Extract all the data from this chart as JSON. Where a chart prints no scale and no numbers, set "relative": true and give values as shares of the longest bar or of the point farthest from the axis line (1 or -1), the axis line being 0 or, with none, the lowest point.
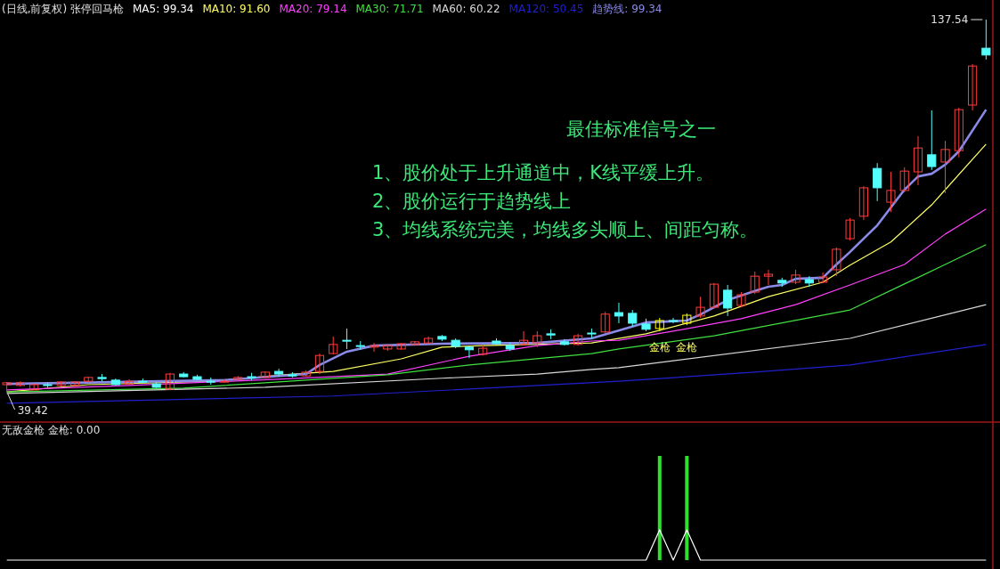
{
  "chart_data": [
    {
      "type": "candlestick",
      "title": "(日线,前复权) 张停回马枪",
      "legend": "top",
      "categories": [
        null,
        null,
        null,
        null,
        null,
        null,
        null,
        null,
        null,
        null,
        null,
        null,
        null,
        null,
        null,
        null,
        null,
        null,
        null,
        null,
        null,
        null,
        null,
        null,
        null,
        null,
        null,
        null,
        null,
        null,
        null,
        null,
        null,
        null,
        null,
        null,
        null,
        null,
        null,
        null,
        null,
        null,
        null,
        null,
        null,
        null,
        null,
        null,
        null,
        null,
        null,
        null,
        null,
        null,
        null,
        null,
        null,
        null,
        null,
        null,
        null,
        null,
        null,
        null,
        null,
        null,
        null,
        null,
        null,
        null,
        null,
        null,
        null
      ],
      "ohlc": [
        [
          41.3,
          42.0,
          39.42,
          41.8
        ],
        [
          41.1,
          42.2,
          40.8,
          41.8
        ],
        [
          39.9,
          41.5,
          39.9,
          41.3
        ],
        [
          41.3,
          41.8,
          40.6,
          41.1
        ],
        [
          41.1,
          42.2,
          40.8,
          42.0
        ],
        [
          41.1,
          42.2,
          40.8,
          42.0
        ],
        [
          42.2,
          43.4,
          41.8,
          43.2
        ],
        [
          43.2,
          44.1,
          42.2,
          42.9
        ],
        [
          42.5,
          42.9,
          41.1,
          41.3
        ],
        [
          41.5,
          42.7,
          41.3,
          42.2
        ],
        [
          42.2,
          42.9,
          41.8,
          42.0
        ],
        [
          41.5,
          42.0,
          40.4,
          40.6
        ],
        [
          40.1,
          44.4,
          39.9,
          44.1
        ],
        [
          44.1,
          44.6,
          43.2,
          43.4
        ],
        [
          43.4,
          43.9,
          42.5,
          42.7
        ],
        [
          42.2,
          43.2,
          41.3,
          42.0
        ],
        [
          42.0,
          42.7,
          41.8,
          42.2
        ],
        [
          42.7,
          43.6,
          42.5,
          43.2
        ],
        [
          43.4,
          44.4,
          42.5,
          43.2
        ],
        [
          43.2,
          44.8,
          42.9,
          44.6
        ],
        [
          44.8,
          45.5,
          43.4,
          44.1
        ],
        [
          43.9,
          44.6,
          43.2,
          43.6
        ],
        [
          43.6,
          45.1,
          43.4,
          44.6
        ],
        [
          44.8,
          49.5,
          44.1,
          49.0
        ],
        [
          49.5,
          54.0,
          49.3,
          51.9
        ],
        [
          53.0,
          56.1,
          50.7,
          52.8
        ],
        [
          51.6,
          52.8,
          50.5,
          51.4
        ],
        [
          51.2,
          52.3,
          50.0,
          51.6
        ],
        [
          50.7,
          52.1,
          50.2,
          51.6
        ],
        [
          50.7,
          52.3,
          50.5,
          52.1
        ],
        [
          51.9,
          52.8,
          51.6,
          52.6
        ],
        [
          52.3,
          54.0,
          52.1,
          53.5
        ],
        [
          54.0,
          54.4,
          52.8,
          53.3
        ],
        [
          53.0,
          53.5,
          50.9,
          51.4
        ],
        [
          51.2,
          51.4,
          48.3,
          50.5
        ],
        [
          49.3,
          51.6,
          49.0,
          50.9
        ],
        [
          52.8,
          53.5,
          51.6,
          52.1
        ],
        [
          51.6,
          52.3,
          50.2,
          50.7
        ],
        [
          51.9,
          55.4,
          51.6,
          53.0
        ],
        [
          52.3,
          55.4,
          51.2,
          54.2
        ],
        [
          54.7,
          55.9,
          53.3,
          54.4
        ],
        [
          52.6,
          53.3,
          51.6,
          51.9
        ],
        [
          51.9,
          54.7,
          51.6,
          54.2
        ],
        [
          54.9,
          56.1,
          53.5,
          54.7
        ],
        [
          55.2,
          60.5,
          54.9,
          59.9
        ],
        [
          60.3,
          62.9,
          57.5,
          59.4
        ],
        [
          60.1,
          61.0,
          56.6,
          57.5
        ],
        [
          57.3,
          58.7,
          55.4,
          55.9
        ],
        [
          56.1,
          58.9,
          55.4,
          58.2
        ],
        [
          58.2,
          58.9,
          57.5,
          58.0
        ],
        [
          57.5,
          60.1,
          57.0,
          59.6
        ],
        [
          59.4,
          64.5,
          58.9,
          61.7
        ],
        [
          61.7,
          68.1,
          61.3,
          67.8
        ],
        [
          66.2,
          67.6,
          59.4,
          61.5
        ],
        [
          62.2,
          65.7,
          61.7,
          65.0
        ],
        [
          65.7,
          71.1,
          65.2,
          69.9
        ],
        [
          69.9,
          71.6,
          67.6,
          70.4
        ],
        [
          68.8,
          69.5,
          67.1,
          68.1
        ],
        [
          68.3,
          71.6,
          67.8,
          70.2
        ],
        [
          69.0,
          69.9,
          67.1,
          68.1
        ],
        [
          68.3,
          70.9,
          68.1,
          69.7
        ],
        [
          71.6,
          77.5,
          69.9,
          77.0
        ],
        [
          79.8,
          85.2,
          79.3,
          84.7
        ],
        [
          85.7,
          93.6,
          84.7,
          93.2
        ],
        [
          98.3,
          99.7,
          89.7,
          93.2
        ],
        [
          89.4,
          97.4,
          86.8,
          92.5
        ],
        [
          92.5,
          98.6,
          92.0,
          97.6
        ],
        [
          97.4,
          106.8,
          93.9,
          103.7
        ],
        [
          101.9,
          113.6,
          97.9,
          98.8
        ],
        [
          100.0,
          105.6,
          91.8,
          103.3
        ],
        [
          103.0,
          114.3,
          101.2,
          113.8
        ],
        [
          115.0,
          125.8,
          113.6,
          125.3
        ],
        [
          130.0,
          137.54,
          127.0,
          128.2
        ]
      ],
      "colors": [
        "#ff3c3c",
        "#ff3c3c",
        "#ff3c3c",
        "#54fcfc",
        "#ff3c3c",
        "#ff3c3c",
        "#ff3c3c",
        "#54fcfc",
        "#54fcfc",
        "#ff3c3c",
        "#54fcfc",
        "#54fcfc",
        "#ff3c3c",
        "#54fcfc",
        "#54fcfc",
        "#54fcfc",
        "#ff3c3c",
        "#ff3c3c",
        "#54fcfc",
        "#ff3c3c",
        "#54fcfc",
        "#54fcfc",
        "#ff3c3c",
        "#ff3c3c",
        "#ff3c3c",
        "#54fcfc",
        "#54fcfc",
        "#ff3c3c",
        "#ff3c3c",
        "#ff3c3c",
        "#ff3c3c",
        "#ff3c3c",
        "#54fcfc",
        "#54fcfc",
        "#54fcfc",
        "#ff3c3c",
        "#54fcfc",
        "#54fcfc",
        "#ff3c3c",
        "#ff3c3c",
        "#54fcfc",
        "#54fcfc",
        "#ff3c3c",
        "#54fcfc",
        "#ff3c3c",
        "#54fcfc",
        "#54fcfc",
        "#54fcfc",
        "#ffff00",
        "#54fcfc",
        "#ffff00",
        "#ff3c3c",
        "#ff3c3c",
        "#54fcfc",
        "#ff3c3c",
        "#ff3c3c",
        "#ff3c3c",
        "#54fcfc",
        "#ff3c3c",
        "#54fcfc",
        "#ff3c3c",
        "#ff3c3c",
        "#ff3c3c",
        "#ff3c3c",
        "#54fcfc",
        "#ff3c3c",
        "#ff3c3c",
        "#ff3c3c",
        "#54fcfc",
        "#ff3c3c",
        "#ff3c3c",
        "#ff3c3c",
        "#54fcfc"
      ],
      "series": [
        {
          "name": "MA5: 99.34",
          "type": "line",
          "color": "#ffffff",
          "values": [
            null,
            null,
            null,
            null,
            null,
            null,
            null,
            null,
            null,
            null,
            null,
            null,
            null,
            null,
            null,
            null,
            null,
            null,
            null,
            null,
            null,
            null,
            null,
            null,
            null,
            null,
            null,
            null,
            null,
            null,
            null,
            null,
            null,
            null,
            null,
            null,
            null,
            null,
            null,
            null,
            null,
            null,
            null,
            null,
            null,
            null,
            null,
            null,
            null,
            null,
            null,
            null,
            null,
            null,
            null,
            null,
            null,
            null,
            null,
            null,
            null,
            null,
            null,
            null,
            null,
            null,
            null,
            null,
            null,
            null,
            null,
            null,
            null
          ]
        },
        {
          "name": "MA10: 91.60",
          "type": "line",
          "color": "#ffff66",
          "values": [
            39.4,
            null,
            null,
            null,
            null,
            null,
            41.3,
            null,
            null,
            null,
            null,
            null,
            null,
            null,
            null,
            42.2,
            null,
            null,
            null,
            null,
            null,
            44.1,
            null,
            null,
            44.8,
            null,
            null,
            null,
            null,
            48.1,
            null,
            null,
            51.2,
            null,
            null,
            51.6,
            null,
            null,
            null,
            null,
            null,
            null,
            null,
            52.3,
            null,
            null,
            null,
            54.7,
            null,
            null,
            null,
            null,
            59.4,
            null,
            null,
            null,
            64.5,
            null,
            null,
            null,
            68.3,
            null,
            72.8,
            null,
            null,
            78.9,
            null,
            null,
            88.7,
            92.7,
            null,
            null,
            104.7
          ]
        },
        {
          "name": "MA20: 79.14",
          "type": "line",
          "color": "#ff40ff",
          "values": [
            39.9,
            null,
            null,
            null,
            null,
            null,
            null,
            null,
            null,
            41.1,
            null,
            null,
            null,
            null,
            null,
            null,
            null,
            null,
            null,
            null,
            null,
            42.9,
            null,
            null,
            null,
            null,
            null,
            null,
            44.1,
            null,
            null,
            null,
            null,
            null,
            48.8,
            null,
            null,
            null,
            null,
            51.6,
            null,
            null,
            null,
            52.8,
            null,
            53.0,
            null,
            null,
            null,
            55.4,
            null,
            null,
            null,
            null,
            58.7,
            null,
            null,
            null,
            62.4,
            null,
            null,
            null,
            67.6,
            null,
            null,
            null,
            73.0,
            null,
            null,
            81.0,
            null,
            null,
            87.6
          ]
        },
        {
          "name": "MA30: 71.71",
          "type": "line",
          "color": "#40e040",
          "values": [
            39.4,
            null,
            null,
            null,
            null,
            null,
            null,
            null,
            null,
            null,
            null,
            null,
            null,
            40.4,
            null,
            null,
            null,
            null,
            null,
            41.8,
            null,
            null,
            null,
            null,
            null,
            null,
            null,
            null,
            43.9,
            null,
            null,
            null,
            null,
            null,
            46.5,
            null,
            null,
            null,
            null,
            null,
            null,
            null,
            null,
            49.5,
            null,
            50.7,
            null,
            null,
            null,
            null,
            null,
            null,
            54.2,
            null,
            null,
            null,
            null,
            null,
            null,
            null,
            null,
            null,
            61.0,
            null,
            null,
            null,
            null,
            null,
            null,
            73.0,
            null,
            null,
            78.2
          ]
        },
        {
          "name": "MA60: 60.22",
          "type": "line",
          "color": "#d8d8d8",
          "values": [
            39.0,
            null,
            null,
            null,
            null,
            null,
            null,
            null,
            null,
            null,
            null,
            null,
            null,
            null,
            null,
            null,
            null,
            null,
            null,
            40.6,
            null,
            null,
            null,
            null,
            null,
            null,
            null,
            null,
            null,
            null,
            null,
            null,
            43.0,
            null,
            null,
            null,
            null,
            null,
            null,
            44.1,
            null,
            null,
            null,
            45.3,
            null,
            45.8,
            null,
            null,
            null,
            null,
            null,
            null,
            null,
            null,
            null,
            null,
            null,
            null,
            null,
            null,
            null,
            null,
            53.5,
            null,
            null,
            null,
            null,
            null,
            null,
            null,
            null,
            null,
            62.4
          ]
        },
        {
          "name": "MA120: 50.45",
          "type": "line",
          "color": "#2020d0",
          "values": [
            36.4,
            null,
            null,
            null,
            null,
            null,
            null,
            null,
            null,
            null,
            null,
            null,
            null,
            null,
            null,
            null,
            null,
            null,
            null,
            null,
            null,
            null,
            null,
            null,
            38.3,
            null,
            null,
            null,
            null,
            null,
            null,
            null,
            null,
            null,
            null,
            null,
            null,
            null,
            null,
            null,
            null,
            null,
            null,
            null,
            null,
            42.2,
            null,
            null,
            null,
            null,
            null,
            null,
            null,
            null,
            null,
            44.6,
            null,
            null,
            null,
            null,
            null,
            null,
            46.5,
            null,
            null,
            null,
            null,
            null,
            null,
            null,
            null,
            null,
            51.9
          ]
        },
        {
          "name": "趋势线: 99.34",
          "type": "line",
          "color": "#8a8ae8",
          "values": [
            41.5,
            null,
            null,
            null,
            null,
            41.8,
            null,
            null,
            null,
            null,
            null,
            null,
            null,
            null,
            null,
            null,
            42.5,
            null,
            null,
            null,
            null,
            null,
            44.1,
            46.5,
            null,
            50.0,
            null,
            51.6,
            null,
            null,
            null,
            null,
            52.1,
            null,
            null,
            null,
            null,
            null,
            null,
            52.3,
            null,
            null,
            null,
            53.5,
            null,
            null,
            null,
            57.7,
            null,
            null,
            58.2,
            59.8,
            null,
            63.6,
            null,
            66.0,
            67.1,
            67.6,
            69.2,
            null,
            69.5,
            73.0,
            76.3,
            null,
            83.3,
            null,
            92.7,
            96.2,
            96.9,
            99.3,
            102.8,
            null,
            113.8
          ]
        }
      ],
      "annotations": [
        "最佳标准信号之一",
        "1、股价处于上升通道中，K线平缓上升。",
        "2、股价运行于趋势线上",
        "3、均线系统完美，均线多头顺上、间距匀称。",
        "137.54",
        "39.42",
        {
          "text": "金枪",
          "y": 53.5
        },
        {
          "text": "金枪",
          "y": 53.5
        }
      ]
    },
    {
      "type": "bar",
      "relative": true,
      "title": "无敌金枪 金枪: 0.00",
      "categories": [
        null,
        null,
        null,
        null,
        null,
        null,
        null,
        null,
        null,
        null,
        null,
        null,
        null,
        null,
        null,
        null,
        null,
        null,
        null,
        null,
        null,
        null,
        null,
        null,
        null,
        null,
        null,
        null,
        null,
        null,
        null,
        null,
        null,
        null,
        null,
        null,
        null,
        null,
        null,
        null,
        null,
        null,
        null,
        null,
        null,
        null,
        null,
        null,
        null,
        null,
        null,
        null,
        null,
        null,
        null,
        null,
        null,
        null,
        null,
        null,
        null,
        null,
        null,
        null,
        null,
        null,
        null,
        null,
        null,
        null,
        null,
        null,
        null
      ],
      "series": [
        {
          "type": "bar",
          "color": "#30e030",
          "values": [
            null,
            null,
            null,
            null,
            null,
            null,
            null,
            null,
            null,
            null,
            null,
            null,
            null,
            null,
            null,
            null,
            null,
            null,
            null,
            null,
            null,
            null,
            null,
            null,
            null,
            null,
            null,
            null,
            null,
            null,
            null,
            null,
            null,
            null,
            null,
            null,
            null,
            null,
            null,
            null,
            null,
            null,
            null,
            null,
            null,
            null,
            null,
            null,
            1,
            null,
            1,
            null,
            null,
            null,
            null,
            null,
            null,
            null,
            null,
            null,
            null,
            null,
            null,
            null,
            null,
            null,
            null,
            null,
            null,
            null,
            null,
            null,
            null
          ]
        },
        {
          "type": "line",
          "color": "#ffffff",
          "values": [
            0,
            0,
            0,
            0,
            0,
            0,
            0,
            0,
            0,
            0,
            0,
            0,
            0,
            0,
            0,
            0,
            0,
            0,
            0,
            0,
            0,
            0,
            0,
            0,
            0,
            0,
            0,
            0,
            0,
            0,
            0,
            0,
            0,
            0,
            0,
            0,
            0,
            0,
            0,
            0,
            0,
            0,
            0,
            0,
            0,
            0,
            0,
            0,
            0.29,
            0,
            0.29,
            0,
            0,
            0,
            0,
            0,
            0,
            0,
            0,
            0,
            0,
            0,
            0,
            0,
            0,
            0,
            0,
            0,
            0,
            0,
            0,
            0,
            0
          ]
        }
      ]
    }
  ]
}
